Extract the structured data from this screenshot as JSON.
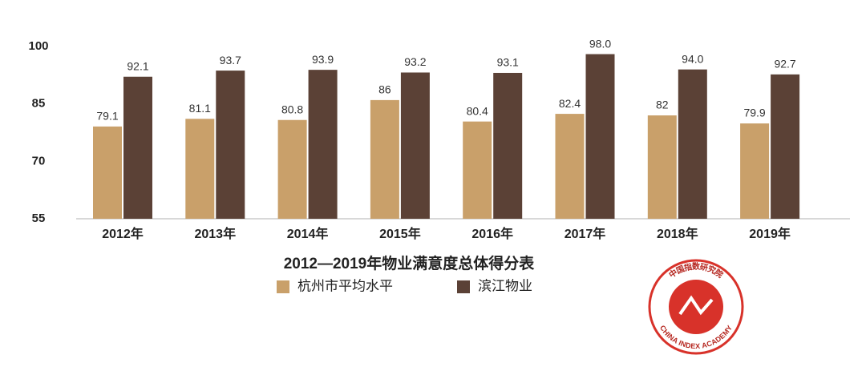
{
  "chart_data": {
    "type": "bar",
    "title": "2012—2019年物业满意度总体得分表",
    "categories": [
      "2012年",
      "2013年",
      "2014年",
      "2015年",
      "2016年",
      "2017年",
      "2018年",
      "2019年"
    ],
    "series": [
      {
        "name": "杭州市平均水平",
        "color": "#c9a06a",
        "values": [
          79.1,
          81.1,
          80.8,
          86,
          80.4,
          82.4,
          82,
          79.9
        ]
      },
      {
        "name": "滨江物业",
        "color": "#5b4136",
        "values": [
          92.1,
          93.7,
          93.9,
          93.2,
          93.1,
          98,
          94,
          92.7
        ],
        "value_labels": [
          "92.1",
          "93.7",
          "93.9",
          "93.2",
          "93.1",
          "98.0",
          "94.0",
          "92.7"
        ]
      }
    ],
    "ylim": [
      55,
      100
    ],
    "yticks": [
      55,
      70,
      85,
      100
    ],
    "grid": false
  },
  "logo": {
    "text": "CHINA INDEX ACADEMY",
    "chinese": "中国指数研究院"
  }
}
